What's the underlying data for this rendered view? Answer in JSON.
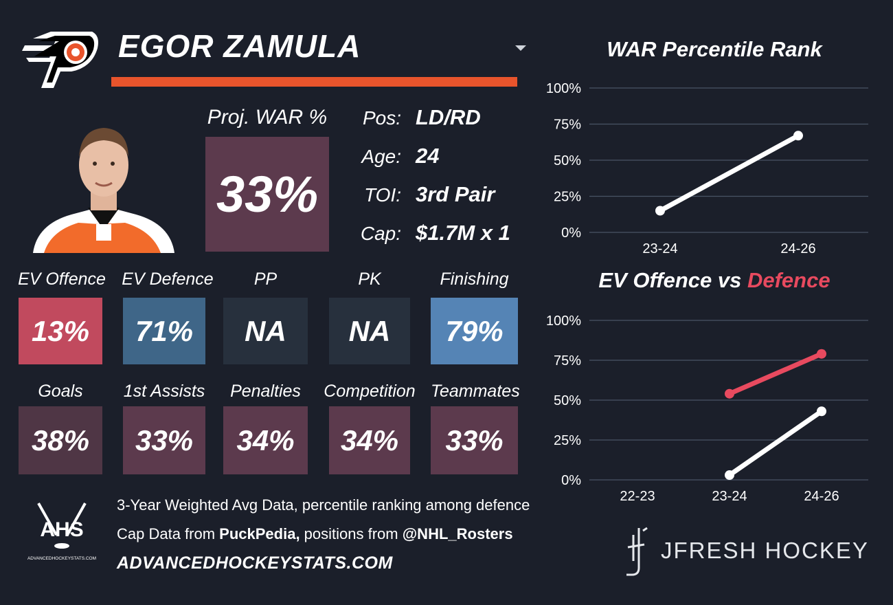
{
  "player": {
    "name": "EGOR ZAMULA",
    "proj_war_label": "Proj. WAR %",
    "proj_war_value": "33%",
    "info": [
      {
        "key": "Pos:",
        "value": "LD/RD"
      },
      {
        "key": "Age:",
        "value": "24"
      },
      {
        "key": "TOI:",
        "value": "3rd Pair"
      },
      {
        "key": "Cap:",
        "value": "$1.7M x 1"
      }
    ]
  },
  "stats_row1": [
    {
      "label": "EV Offence",
      "value": "13%",
      "color": "#c14a5e"
    },
    {
      "label": "EV Defence",
      "value": "71%",
      "color": "#3f6688"
    },
    {
      "label": "PP",
      "value": "NA",
      "color": "#27303d"
    },
    {
      "label": "PK",
      "value": "NA",
      "color": "#27303d"
    },
    {
      "label": "Finishing",
      "value": "79%",
      "color": "#5584b5"
    }
  ],
  "stats_row2": [
    {
      "label": "Goals",
      "value": "38%",
      "color": "#4f3645"
    },
    {
      "label": "1st Assists",
      "value": "33%",
      "color": "#5c3a4d"
    },
    {
      "label": "Penalties",
      "value": "34%",
      "color": "#5c3a4d"
    },
    {
      "label": "Competition",
      "value": "34%",
      "color": "#5c3a4d"
    },
    {
      "label": "Teammates",
      "value": "33%",
      "color": "#5c3a4d"
    }
  ],
  "footer": {
    "line1": "3-Year Weighted Avg Data, percentile ranking among defence",
    "line2_prefix": "Cap Data from ",
    "line2_bold1": "PuckPedia,",
    "line2_mid": " positions from ",
    "line2_bold2": "@NHL_Rosters",
    "url": "ADVANCEDHOCKEYSTATS.COM",
    "ahs_logo_text": "AHS",
    "ahs_logo_sub": "ADVANCEDHOCKEYSTATS.COM",
    "brand": "JFRESH HOCKEY"
  },
  "icons": {
    "team_logo": "flyers-logo-icon",
    "dropdown": "chevron-down-icon",
    "ahs": "ahs-logo-icon",
    "jfresh": "jfresh-logo-icon"
  },
  "chart_data": [
    {
      "type": "line",
      "title": "WAR Percentile Rank",
      "categories": [
        "23-24",
        "24-26"
      ],
      "ylim": [
        0,
        100
      ],
      "yticks": [
        "0%",
        "25%",
        "50%",
        "75%",
        "100%"
      ],
      "series": [
        {
          "values": [
            15,
            67
          ],
          "color": "#ffffff"
        }
      ]
    },
    {
      "type": "line",
      "title_part1": "EV Offence vs ",
      "title_part2": "Defence",
      "title_part2_color": "#e84a5f",
      "categories": [
        "22-23",
        "23-24",
        "24-26"
      ],
      "ylim": [
        0,
        100
      ],
      "yticks": [
        "0%",
        "25%",
        "50%",
        "75%",
        "100%"
      ],
      "series": [
        {
          "values": [
            null,
            3,
            43
          ],
          "color": "#ffffff"
        },
        {
          "values": [
            null,
            54,
            79
          ],
          "color": "#e84a5f"
        }
      ]
    }
  ]
}
